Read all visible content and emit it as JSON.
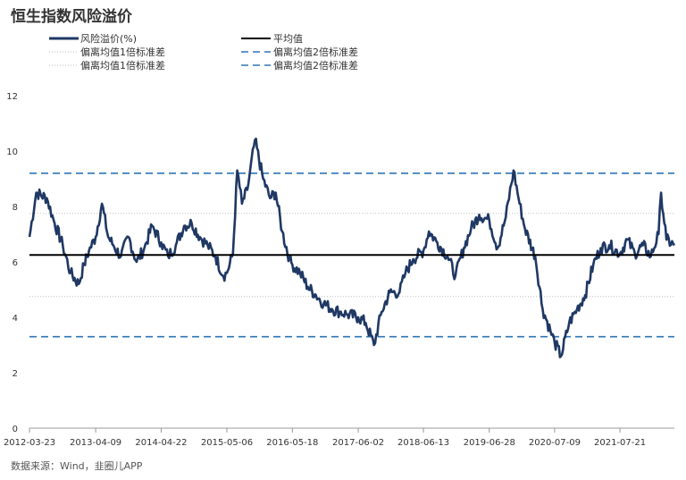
{
  "title": "恒生指数风险溢价",
  "source": "数据来源：Wind，韭圈儿APP",
  "legend": {
    "risk": "风险溢价(%)",
    "mean": "平均值",
    "plus1": "偏离均值1倍标准差",
    "minus1": "偏离均值1倍标准差",
    "plus2": "偏离均值2倍标准差",
    "minus2": "偏离均值2倍标准差"
  },
  "colors": {
    "series": "#1f3864",
    "mean": "#000000",
    "band1": "#bfbfbf",
    "band2": "#2e75b6"
  },
  "chart_data": {
    "type": "line",
    "title": "恒生指数风险溢价",
    "xlabel": "",
    "ylabel": "",
    "ylim": [
      0,
      12
    ],
    "yticks": [
      0,
      2,
      4,
      6,
      8,
      10,
      12
    ],
    "xrange": [
      "2012-03-23",
      "2022-05-31"
    ],
    "xticks": [
      "2012-03-23",
      "2013-04-09",
      "2014-04-22",
      "2015-05-06",
      "2016-05-18",
      "2017-06-02",
      "2018-06-13",
      "2019-06-28",
      "2020-07-09",
      "2021-07-21"
    ],
    "reference_lines": {
      "mean": 6.25,
      "plus1": 7.75,
      "minus1": 4.75,
      "plus2": 9.2,
      "minus2": 3.3
    },
    "series": [
      {
        "name": "风险溢价(%)",
        "x": [
          "2012-03-23",
          "2012-05-01",
          "2012-07-01",
          "2012-08-15",
          "2012-10-01",
          "2012-11-15",
          "2013-01-01",
          "2013-02-01",
          "2013-03-01",
          "2013-04-09",
          "2013-05-15",
          "2013-06-20",
          "2013-07-20",
          "2013-09-01",
          "2013-10-15",
          "2013-12-01",
          "2014-01-15",
          "2014-03-01",
          "2014-04-22",
          "2014-06-01",
          "2014-07-15",
          "2014-09-01",
          "2014-10-15",
          "2014-12-01",
          "2015-01-15",
          "2015-03-01",
          "2015-04-15",
          "2015-05-06",
          "2015-06-10",
          "2015-07-05",
          "2015-08-01",
          "2015-09-01",
          "2015-10-15",
          "2015-12-01",
          "2016-01-10",
          "2016-02-12",
          "2016-03-20",
          "2016-05-01",
          "2016-05-18",
          "2016-07-01",
          "2016-08-15",
          "2016-10-01",
          "2016-11-15",
          "2017-01-01",
          "2017-02-15",
          "2017-04-01",
          "2017-06-02",
          "2017-07-15",
          "2017-09-01",
          "2017-10-15",
          "2017-12-01",
          "2018-01-26",
          "2018-03-01",
          "2018-04-15",
          "2018-06-13",
          "2018-07-15",
          "2018-09-01",
          "2018-10-30",
          "2018-12-15",
          "2019-02-01",
          "2019-03-15",
          "2019-05-01",
          "2019-06-28",
          "2019-08-15",
          "2019-10-01",
          "2019-11-15",
          "2019-12-20",
          "2020-01-20",
          "2020-03-19",
          "2020-05-01",
          "2020-06-15",
          "2020-07-09",
          "2020-08-15",
          "2020-10-01",
          "2020-11-15",
          "2021-01-01",
          "2021-02-17",
          "2021-04-01",
          "2021-05-20",
          "2021-07-21",
          "2021-09-01",
          "2021-10-15",
          "2021-12-01",
          "2022-01-15",
          "2022-03-01",
          "2022-03-15",
          "2022-04-15",
          "2022-05-31"
        ],
        "values": [
          6.9,
          8.5,
          8.3,
          7.4,
          6.6,
          5.6,
          5.2,
          5.9,
          6.4,
          6.9,
          8.1,
          6.9,
          6.6,
          6.2,
          6.9,
          6.0,
          6.5,
          7.3,
          6.7,
          6.2,
          6.6,
          7.3,
          7.4,
          6.9,
          6.6,
          6.2,
          5.5,
          5.6,
          6.3,
          9.3,
          8.1,
          8.6,
          10.4,
          9.0,
          8.3,
          8.5,
          7.1,
          6.1,
          5.9,
          5.6,
          5.1,
          4.8,
          4.5,
          4.3,
          4.2,
          4.1,
          4.0,
          3.8,
          3.0,
          4.2,
          4.9,
          4.9,
          5.6,
          6.1,
          6.4,
          7.1,
          6.7,
          6.2,
          5.5,
          6.5,
          7.2,
          7.7,
          7.5,
          6.5,
          7.6,
          9.3,
          8.1,
          7.2,
          6.2,
          4.3,
          3.5,
          3.1,
          2.6,
          3.8,
          4.3,
          4.8,
          5.9,
          6.5,
          6.6,
          6.3,
          6.8,
          6.3,
          6.6,
          6.2,
          7.0,
          8.5,
          6.8,
          6.6
        ]
      }
    ]
  },
  "x_labels": [
    "2012-03-23",
    "2013-04-09",
    "2014-04-22",
    "2015-05-06",
    "2016-05-18",
    "2017-06-02",
    "2018-06-13",
    "2019-06-28",
    "2020-07-09",
    "2021-07-21"
  ],
  "y_labels": [
    "0",
    "2",
    "4",
    "6",
    "8",
    "10",
    "12"
  ]
}
